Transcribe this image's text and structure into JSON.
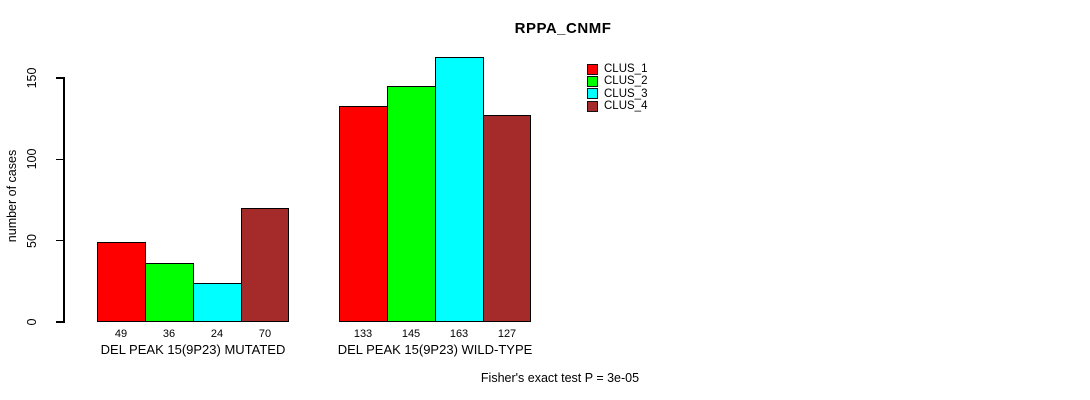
{
  "title": "RPPA_CNMF",
  "ylabel": "number of cases",
  "footer": "Fisher's exact test P = 3e-05",
  "legend": [
    {
      "label": "CLUS_1",
      "color": "#ff0000"
    },
    {
      "label": "CLUS_2",
      "color": "#00ff00"
    },
    {
      "label": "CLUS_3",
      "color": "#00ffff"
    },
    {
      "label": "CLUS_4",
      "color": "#a52a2a"
    }
  ],
  "chart_data": {
    "type": "bar",
    "title": "RPPA_CNMF",
    "xlabel": "",
    "ylabel": "number of cases",
    "categories": [
      "DEL PEAK 15(9P23) MUTATED",
      "DEL PEAK 15(9P23) WILD-TYPE"
    ],
    "series": [
      {
        "name": "CLUS_1",
        "color": "#ff0000",
        "values": [
          49,
          133
        ]
      },
      {
        "name": "CLUS_2",
        "color": "#00ff00",
        "values": [
          36,
          145
        ]
      },
      {
        "name": "CLUS_3",
        "color": "#00ffff",
        "values": [
          24,
          163
        ]
      },
      {
        "name": "CLUS_4",
        "color": "#a52a2a",
        "values": [
          70,
          127
        ]
      }
    ],
    "bar_value_labels": [
      [
        49,
        36,
        24,
        70
      ],
      [
        133,
        145,
        163,
        127
      ]
    ],
    "yticks": [
      0,
      50,
      100,
      150
    ],
    "ylim": [
      0,
      163
    ],
    "grid": false,
    "legend_position": "top-right",
    "annotation": "Fisher's exact test P = 3e-05"
  }
}
